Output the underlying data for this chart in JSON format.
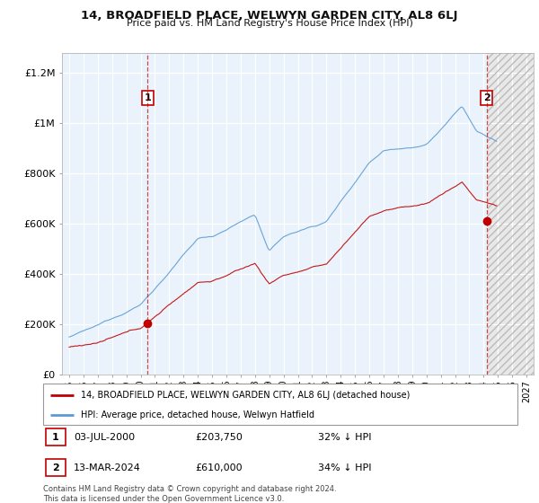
{
  "title": "14, BROADFIELD PLACE, WELWYN GARDEN CITY, AL8 6LJ",
  "subtitle": "Price paid vs. HM Land Registry's House Price Index (HPI)",
  "ylabel_ticks": [
    0,
    200000,
    400000,
    600000,
    800000,
    1000000,
    1200000
  ],
  "ylabel_labels": [
    "£0",
    "£200K",
    "£400K",
    "£600K",
    "£800K",
    "£1M",
    "£1.2M"
  ],
  "ylim": [
    0,
    1280000
  ],
  "xlim_start": 1994.5,
  "xlim_end": 2027.5,
  "xtick_years": [
    1995,
    1996,
    1997,
    1998,
    1999,
    2000,
    2001,
    2002,
    2003,
    2004,
    2005,
    2006,
    2007,
    2008,
    2009,
    2010,
    2011,
    2012,
    2013,
    2014,
    2015,
    2016,
    2017,
    2018,
    2019,
    2020,
    2021,
    2022,
    2023,
    2024,
    2025,
    2026,
    2027
  ],
  "hpi_color": "#5b9bd5",
  "price_color": "#c00000",
  "chart_bg": "#eaf3fb",
  "transaction1_x": 2000.5,
  "transaction1_y": 203750,
  "transaction2_x": 2024.2,
  "transaction2_y": 610000,
  "legend_line1": "14, BROADFIELD PLACE, WELWYN GARDEN CITY, AL8 6LJ (detached house)",
  "legend_line2": "HPI: Average price, detached house, Welwyn Hatfield",
  "footer": "Contains HM Land Registry data © Crown copyright and database right 2024.\nThis data is licensed under the Open Government Licence v3.0.",
  "background_color": "#ffffff",
  "grid_color": "#cccccc"
}
